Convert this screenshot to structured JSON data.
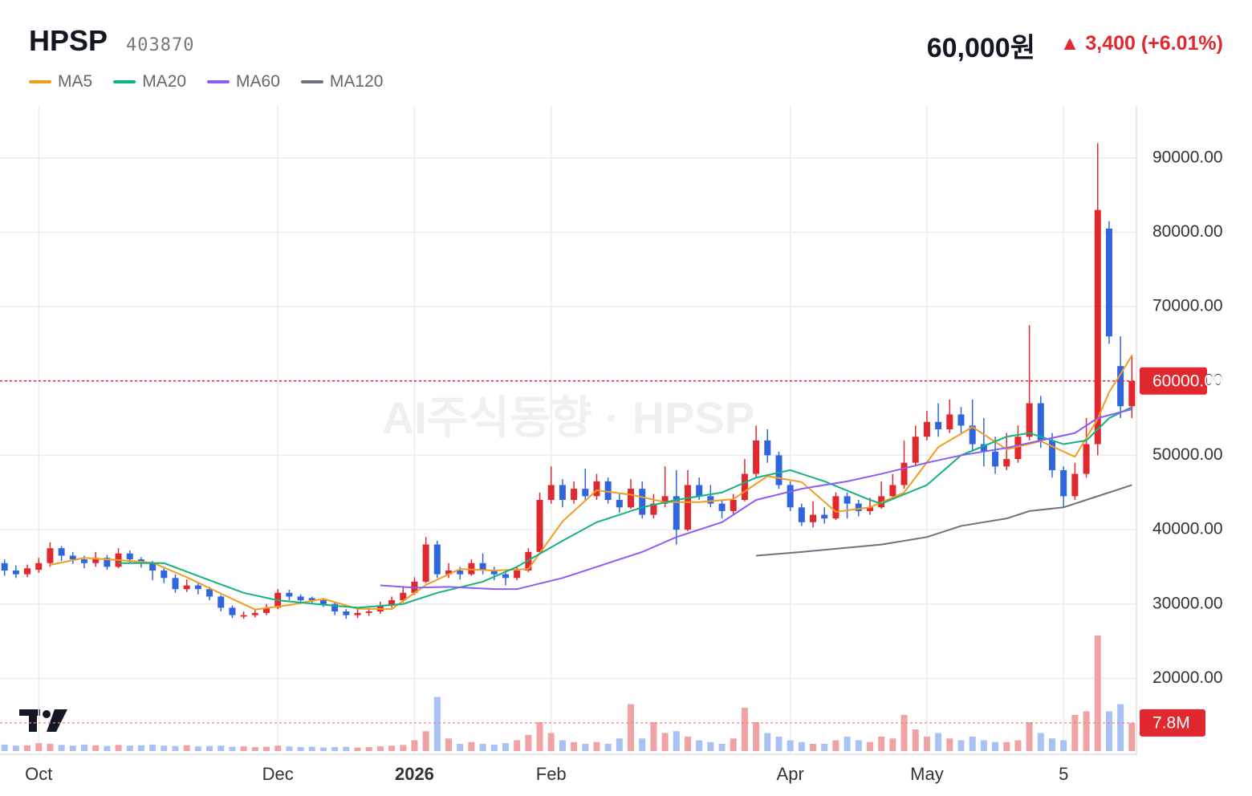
{
  "header": {
    "name": "HPSP",
    "code": "403870",
    "price": "60,000원",
    "change": "▲ 3,400 (+6.01%)"
  },
  "chart_data": {
    "type": "candlestick",
    "watermark": "AI주식동향 · HPSP",
    "up_color": "#e0282e",
    "down_color": "#2f66e0",
    "open": [
      35500,
      34500,
      34000,
      34600,
      35500,
      37500,
      36500,
      36000,
      35500,
      36200,
      35000,
      36800,
      36000,
      35500,
      34500,
      33500,
      32000,
      32500,
      32000,
      31000,
      29500,
      28300,
      28500,
      28800,
      29500,
      31500,
      31000,
      30800,
      30500,
      30000,
      29000,
      28500,
      28800,
      29000,
      29800,
      30500,
      31500,
      33000,
      38000,
      34000,
      34500,
      34000,
      35500,
      34500,
      34000,
      33500,
      34500,
      37000,
      44000,
      46000,
      44000,
      45500,
      44500,
      46500,
      44000,
      43000,
      45500,
      42000,
      43500,
      44500,
      40000,
      46000,
      44500,
      43500,
      42500,
      44000,
      47500,
      52000,
      50000,
      46000,
      43000,
      41000,
      42000,
      41500,
      44500,
      43500,
      42500,
      43000,
      44500,
      46000,
      49000,
      52500,
      54500,
      53500,
      55500,
      54000,
      51500,
      50500,
      48500,
      49500,
      52500,
      57000,
      52000,
      48000,
      44500,
      47500,
      51500,
      80500,
      62000,
      56600
    ],
    "high": [
      36000,
      35200,
      35300,
      36200,
      38300,
      37800,
      37000,
      36500,
      37000,
      36600,
      37500,
      37200,
      36300,
      35800,
      34800,
      34000,
      33300,
      32800,
      32300,
      31200,
      29800,
      29000,
      29300,
      30000,
      32000,
      31900,
      31300,
      31000,
      30800,
      30200,
      29300,
      29300,
      29400,
      30300,
      31000,
      32200,
      33600,
      39000,
      38500,
      35500,
      35000,
      36000,
      36800,
      35000,
      34300,
      35000,
      37500,
      45000,
      48500,
      46800,
      46500,
      48200,
      47500,
      47000,
      44800,
      46800,
      46500,
      44800,
      48500,
      48000,
      48000,
      47000,
      46000,
      44000,
      44800,
      49500,
      54000,
      53500,
      50500,
      46500,
      43500,
      43800,
      43000,
      45000,
      45000,
      44000,
      44300,
      46500,
      47500,
      52000,
      54000,
      56000,
      57000,
      57500,
      56500,
      57500,
      55000,
      52500,
      53000,
      54000,
      67500,
      58000,
      53000,
      48500,
      49000,
      55000,
      92000,
      81500,
      66000,
      63500
    ],
    "low": [
      33800,
      33500,
      33600,
      34200,
      35000,
      35800,
      35400,
      34800,
      35000,
      34600,
      34800,
      35500,
      34900,
      33200,
      32800,
      31500,
      31600,
      31300,
      30500,
      29000,
      28100,
      28000,
      28200,
      28500,
      29300,
      30500,
      30000,
      30000,
      29600,
      28500,
      28000,
      28100,
      28400,
      28700,
      29500,
      30200,
      31200,
      32800,
      33500,
      33500,
      33300,
      33800,
      34000,
      33200,
      32500,
      33200,
      34300,
      36800,
      43500,
      43000,
      43500,
      44000,
      44000,
      43500,
      42300,
      42800,
      41500,
      41500,
      43000,
      38000,
      39800,
      44000,
      43000,
      41500,
      42000,
      43800,
      47000,
      49000,
      45500,
      42500,
      40500,
      40300,
      40800,
      41300,
      41500,
      41800,
      42000,
      42800,
      44000,
      45500,
      48500,
      52000,
      52500,
      53000,
      53000,
      50500,
      48500,
      47500,
      48000,
      49000,
      52000,
      51000,
      47000,
      43000,
      44000,
      47000,
      50000,
      65000,
      55000,
      55000
    ],
    "close": [
      34500,
      34000,
      34800,
      35500,
      37500,
      36500,
      36000,
      35500,
      36200,
      35000,
      36800,
      36000,
      35500,
      34500,
      33500,
      32000,
      32500,
      32000,
      31000,
      29500,
      28500,
      28500,
      28800,
      29500,
      31500,
      31000,
      30500,
      30500,
      30000,
      29000,
      28500,
      28800,
      29000,
      29800,
      30500,
      31500,
      33000,
      38000,
      34000,
      34500,
      34000,
      35500,
      34500,
      34000,
      33500,
      34500,
      37000,
      44000,
      46000,
      44000,
      45500,
      44500,
      46500,
      44000,
      43000,
      45500,
      42000,
      43500,
      44500,
      40000,
      46000,
      44500,
      43500,
      42500,
      44000,
      47500,
      52000,
      50000,
      46000,
      43000,
      41000,
      42000,
      41500,
      44500,
      43500,
      42500,
      43000,
      44500,
      46000,
      49000,
      52500,
      54500,
      53500,
      55500,
      54000,
      51500,
      50500,
      48500,
      49500,
      52500,
      57000,
      52000,
      48000,
      44500,
      47500,
      51500,
      83000,
      66000,
      56600,
      60000
    ],
    "volume": [
      1800000,
      1500000,
      1600000,
      2200000,
      2000000,
      1700000,
      1500000,
      1800000,
      1600000,
      1400000,
      1700000,
      1500000,
      1600000,
      1800000,
      1500000,
      1400000,
      1600000,
      1300000,
      1400000,
      1500000,
      1200000,
      1300000,
      1100000,
      1200000,
      1500000,
      1300000,
      1100000,
      1200000,
      1000000,
      1100000,
      1200000,
      1000000,
      1100000,
      1300000,
      1500000,
      1700000,
      3000000,
      5500000,
      15000000,
      3500000,
      2000000,
      2500000,
      2000000,
      1800000,
      2200000,
      3000000,
      4500000,
      8000000,
      5000000,
      3000000,
      2500000,
      2000000,
      2500000,
      2000000,
      3500000,
      13000000,
      3500000,
      8000000,
      5000000,
      5500000,
      4000000,
      3000000,
      2500000,
      2000000,
      3500000,
      12000000,
      8000000,
      5000000,
      4000000,
      3000000,
      2500000,
      2000000,
      2000000,
      3000000,
      4000000,
      3000000,
      2500000,
      4000000,
      3500000,
      10000000,
      6000000,
      4000000,
      5000000,
      3500000,
      3000000,
      4000000,
      3000000,
      2500000,
      2500000,
      3000000,
      8000000,
      5000000,
      3500000,
      3000000,
      10000000,
      11000000,
      32000000,
      11000000,
      13000000,
      7800000
    ],
    "last_price_label": "60000.00",
    "last_volume_label": "7.8M",
    "series": [
      {
        "name": "MA5",
        "color": "#f29d1f",
        "x": [
          4,
          7,
          10,
          13,
          16,
          19,
          22,
          25,
          28,
          31,
          34,
          37,
          40,
          43,
          46,
          49,
          52,
          55,
          58,
          61,
          64,
          67,
          70,
          73,
          76,
          79,
          82,
          85,
          88,
          91,
          94,
          96,
          97,
          98,
          99
        ],
        "values": [
          35260,
          36200,
          35900,
          35560,
          33600,
          31400,
          29260,
          29860,
          30700,
          29360,
          29320,
          32560,
          34700,
          34500,
          34700,
          41100,
          45300,
          44700,
          43700,
          43700,
          44100,
          47200,
          46400,
          42400,
          43000,
          45000,
          51100,
          53800,
          50800,
          51900,
          49800,
          54900,
          58500,
          60920,
          63420
        ]
      },
      {
        "name": "MA20",
        "color": "#14b37d",
        "x": [
          10,
          14,
          18,
          21,
          24,
          28,
          31,
          35,
          38,
          42,
          45,
          49,
          52,
          56,
          59,
          63,
          66,
          69,
          72,
          76,
          77,
          81,
          84,
          88,
          90,
          93,
          95,
          97,
          99
        ],
        "values": [
          35500,
          35500,
          33200,
          31500,
          30500,
          29900,
          29500,
          30000,
          31500,
          33000,
          35000,
          38500,
          41000,
          43000,
          44000,
          45000,
          47000,
          48000,
          46500,
          44000,
          43500,
          46000,
          50000,
          52500,
          53000,
          51500,
          52000,
          55000,
          56500
        ]
      },
      {
        "name": "MA60",
        "color": "#8b5cf6",
        "x": [
          33,
          36,
          39,
          43,
          45,
          49,
          52,
          56,
          59,
          63,
          66,
          70,
          74,
          77,
          81,
          84,
          88,
          91,
          94,
          96,
          99
        ],
        "values": [
          32500,
          32200,
          32300,
          32000,
          32000,
          33500,
          35000,
          37000,
          39000,
          41000,
          44000,
          45500,
          46500,
          47500,
          49000,
          50000,
          51000,
          52000,
          53000,
          55000,
          56200
        ]
      },
      {
        "name": "MA120",
        "color": "#6b7280",
        "x": [
          66,
          70,
          77,
          81,
          84,
          88,
          90,
          93,
          95,
          97,
          99
        ],
        "values": [
          36500,
          37000,
          38000,
          39000,
          40500,
          41500,
          42500,
          43000,
          44000,
          45000,
          46000
        ]
      }
    ],
    "xlim": [
      -0.4,
      99.4
    ],
    "xticks": [
      {
        "value": 3,
        "label": "Oct"
      },
      {
        "value": 24,
        "label": "Dec"
      },
      {
        "value": 36,
        "label": "2026"
      },
      {
        "value": 48,
        "label": "Feb"
      },
      {
        "value": 69,
        "label": "Apr"
      },
      {
        "value": 81,
        "label": "May"
      },
      {
        "value": 93,
        "label": "5"
      }
    ],
    "ylim": [
      10000,
      97000
    ],
    "yticks": [
      {
        "value": 20000,
        "label": "20000.00"
      },
      {
        "value": 30000,
        "label": "30000.00"
      },
      {
        "value": 40000,
        "label": "40000.00"
      },
      {
        "value": 50000,
        "label": "50000.00"
      },
      {
        "value": 60000,
        "label": "60000.00"
      },
      {
        "value": 70000,
        "label": "70000.00"
      },
      {
        "value": 80000,
        "label": "80000.00"
      },
      {
        "value": 90000,
        "label": "90000.00"
      }
    ],
    "volume_ylim": [
      0,
      40000000
    ],
    "grid": true
  }
}
